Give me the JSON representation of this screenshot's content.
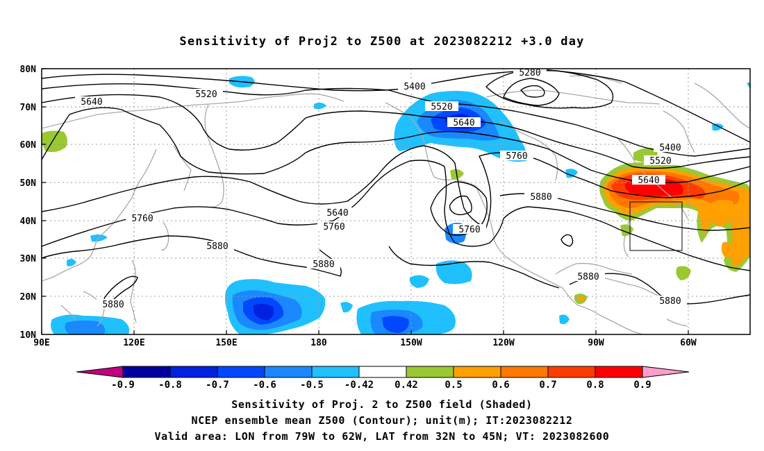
{
  "title": "Sensitivity of Proj2 to Z500 at 2023082212 +3.0 day",
  "map": {
    "lon_labels": [
      "90E",
      "120E",
      "150E",
      "180",
      "150W",
      "120W",
      "90W",
      "60W"
    ],
    "lat_labels": [
      "80N",
      "70N",
      "60N",
      "50N",
      "40N",
      "30N",
      "20N",
      "10N"
    ],
    "gridlines": "dotted",
    "contour_labels": [
      "5280",
      "5400",
      "5520",
      "5640",
      "5520",
      "5640",
      "5760",
      "5640",
      "5760",
      "5880",
      "5880",
      "5880",
      "5760",
      "5760",
      "5880",
      "5400",
      "5520",
      "5640",
      "5880",
      "5880"
    ],
    "valid_area_box": {
      "lon": [
        "79W",
        "62W"
      ],
      "lat": [
        "32N",
        "45N"
      ]
    }
  },
  "colorbar": {
    "ticks": [
      "-0.9",
      "-0.8",
      "-0.7",
      "-0.6",
      "-0.5",
      "-0.42",
      "0.42",
      "0.5",
      "0.6",
      "0.7",
      "0.8",
      "0.9"
    ],
    "colors": [
      "#c0007f",
      "#0000a0",
      "#0021e0",
      "#0048ff",
      "#1a88ff",
      "#20c0ff",
      "#ffffff",
      "#9ac832",
      "#ffa000",
      "#ff7800",
      "#ff3c00",
      "#ff0000",
      "#ff9ecb"
    ]
  },
  "caption": {
    "line1": "Sensitivity of Proj. 2 to Z500 field (Shaded)",
    "line2": "NCEP ensemble mean Z500 (Contour); unit(m); IT:2023082212",
    "line3": "Valid area: LON from 79W to 62W, LAT from 32N to 45N; VT: 2023082600"
  }
}
